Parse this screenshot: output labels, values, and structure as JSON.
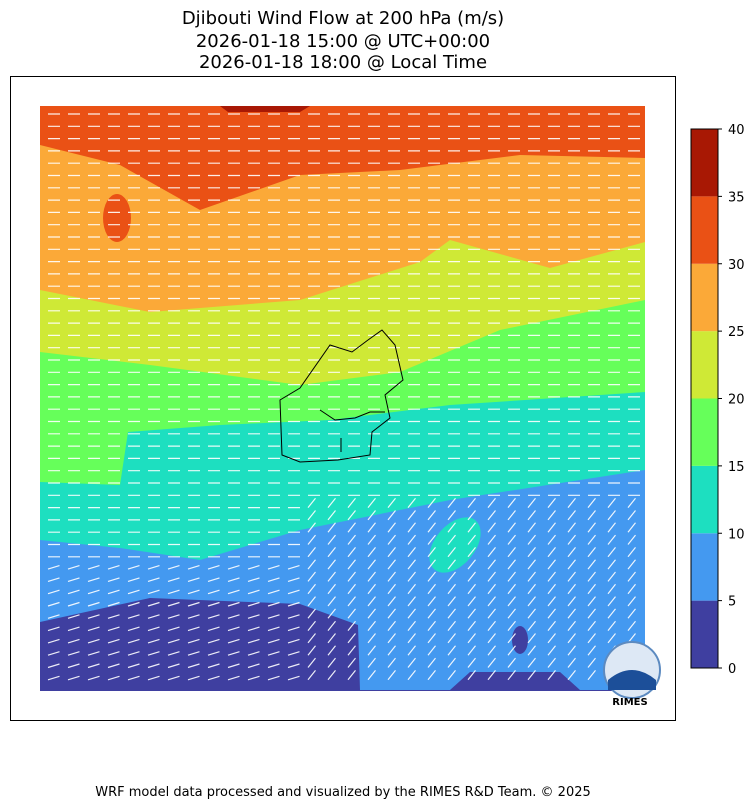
{
  "title": [
    "Djibouti Wind Flow at 200 hPa (m/s)",
    "2026-01-18 15:00 @ UTC+00:00",
    "2026-01-18 18:00 @ Local Time"
  ],
  "colorbar": {
    "ticks": [
      0,
      5,
      10,
      15,
      20,
      25,
      30,
      35,
      40
    ],
    "colors": [
      "#3f3fa0",
      "#4499f0",
      "#1ddfc0",
      "#66ff5a",
      "#cfe936",
      "#fba938",
      "#ea5115",
      "#a81804"
    ]
  },
  "logo": "RIMES",
  "footer": "WRF model data processed and visualized by the RIMES R&D Team. © 2025"
}
